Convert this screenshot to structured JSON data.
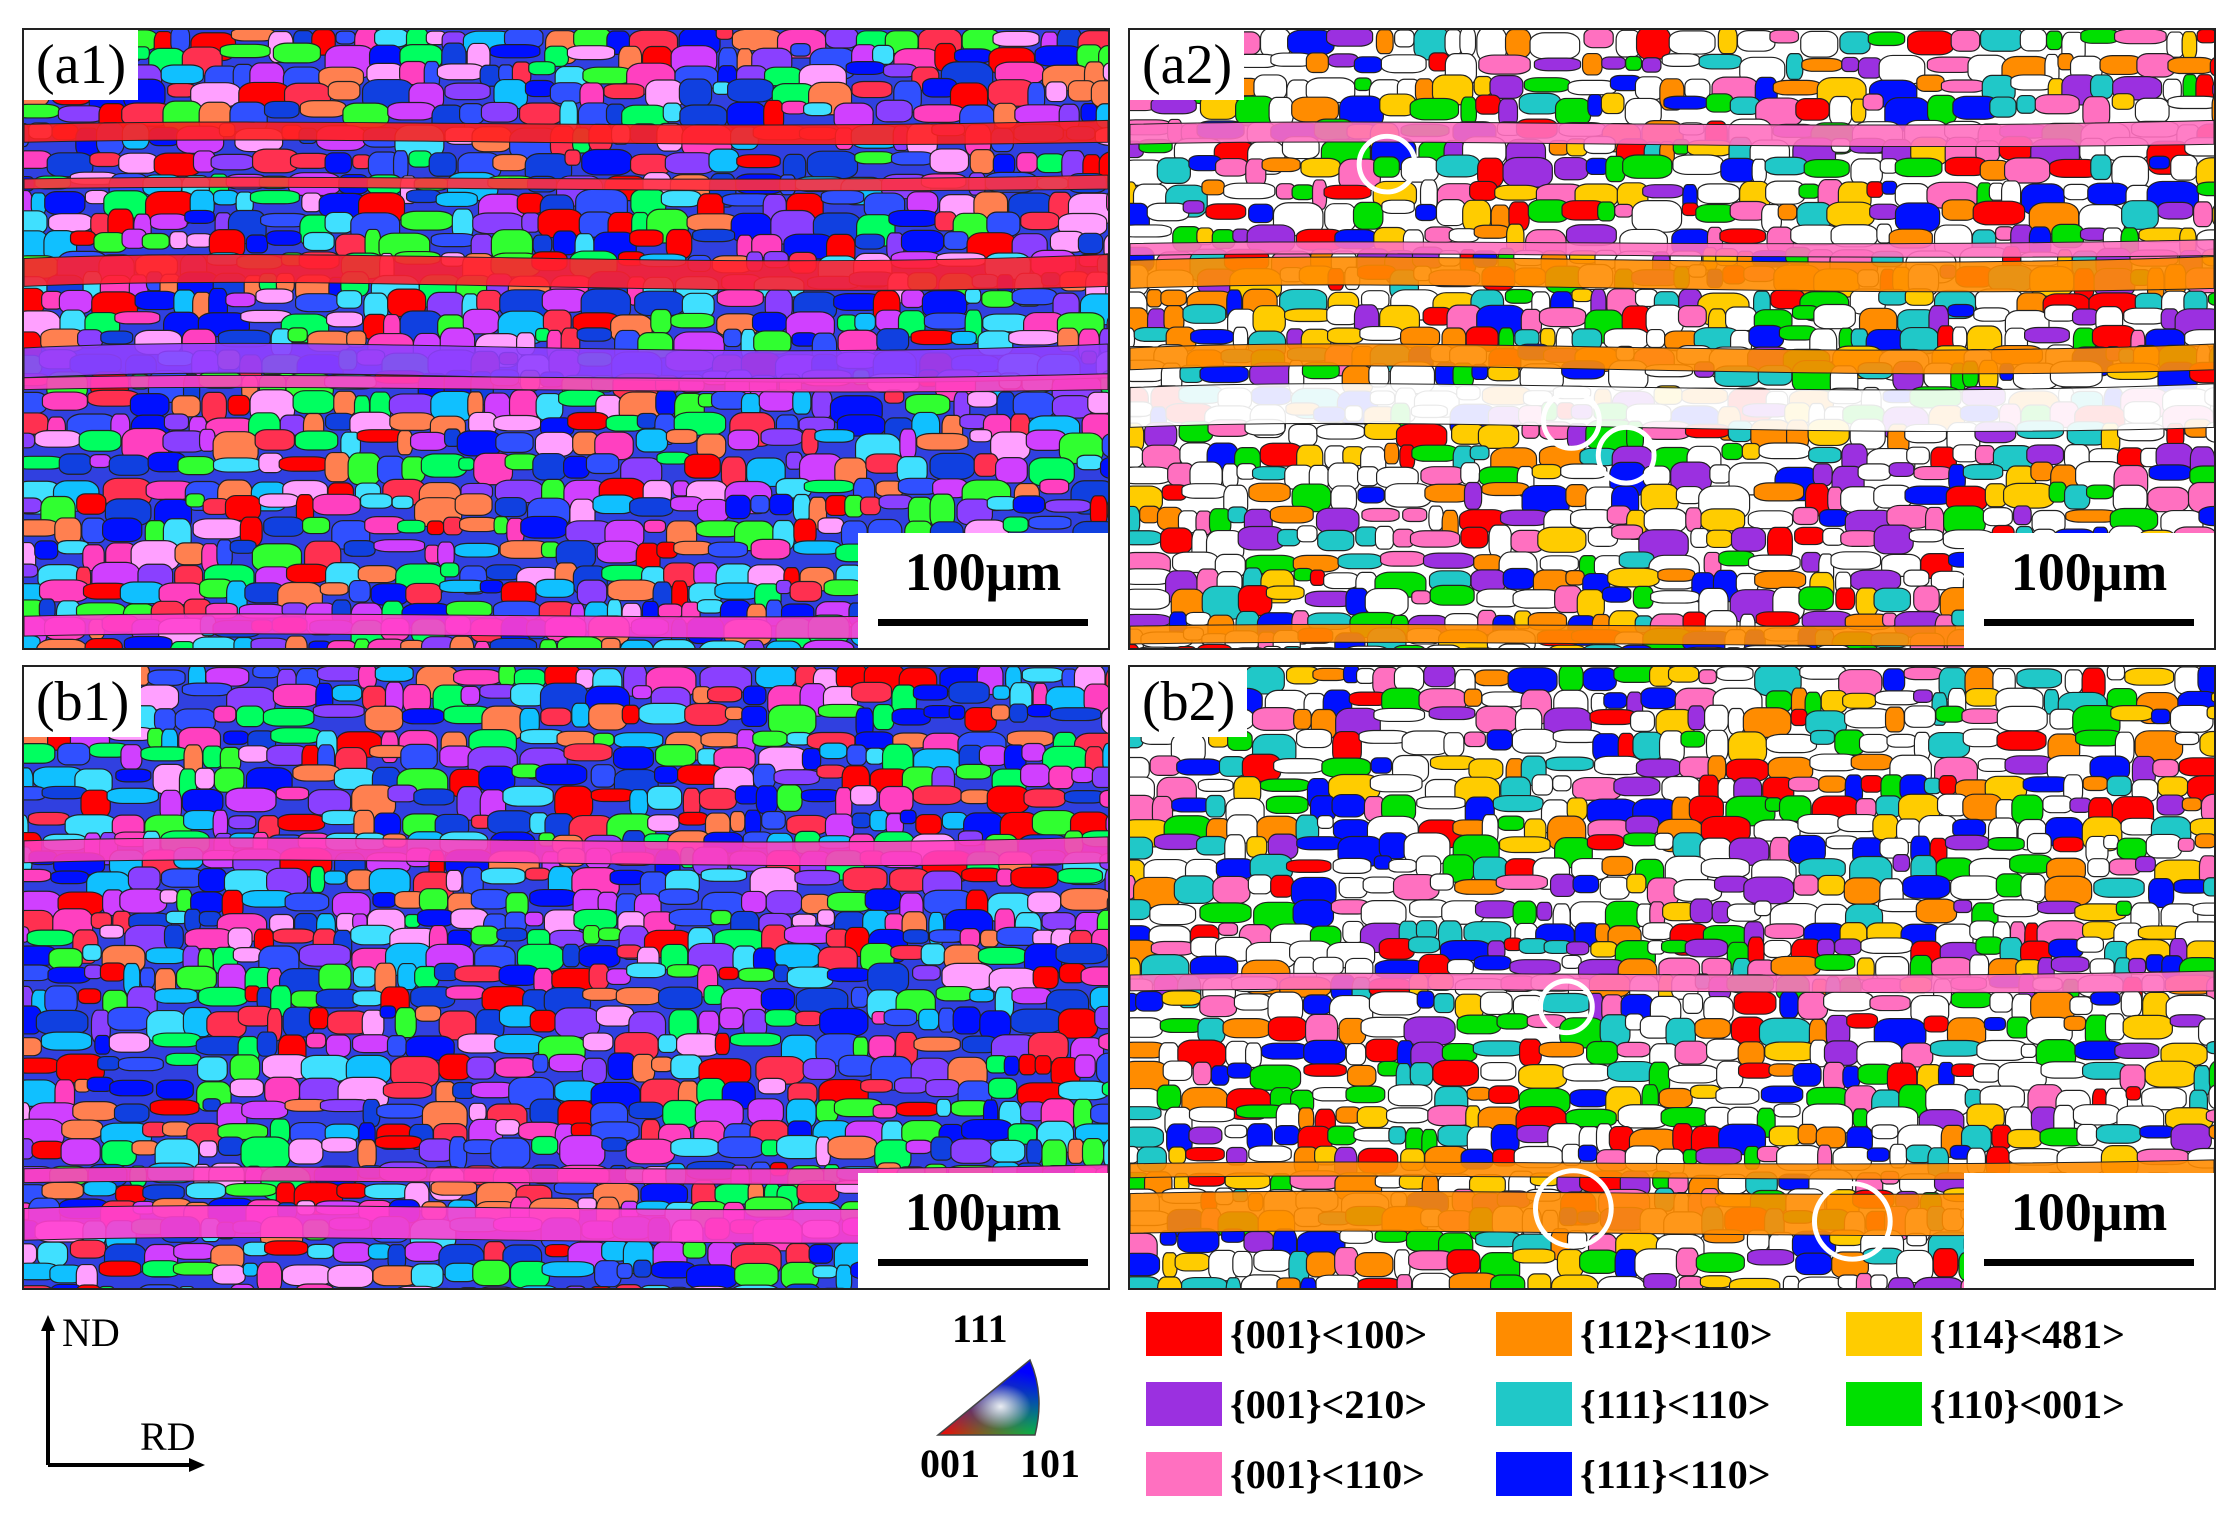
{
  "panels": [
    {
      "id": "a1",
      "label": "(a1)",
      "scale_text": "100μm"
    },
    {
      "id": "a2",
      "label": "(a2)",
      "scale_text": "100μm"
    },
    {
      "id": "b1",
      "label": "(b1)",
      "scale_text": "100μm"
    },
    {
      "id": "b2",
      "label": "(b2)",
      "scale_text": "100μm"
    }
  ],
  "axes": {
    "vertical": "ND",
    "horizontal": "RD"
  },
  "ipf_key": {
    "top": "111",
    "bottom_left": "001",
    "bottom_right": "101"
  },
  "legend": [
    {
      "text": "{001}<100>",
      "color": "#ff0000"
    },
    {
      "text": "{112}<110>",
      "color": "#ff8c00"
    },
    {
      "text": "{114}<481>",
      "color": "#ffcc00"
    },
    {
      "text": "{001}<210>",
      "color": "#9b30e0"
    },
    {
      "text": "{111}<110>",
      "color": "#20c8c8"
    },
    {
      "text": "{110}<001>",
      "color": "#00e000"
    },
    {
      "text": "{001}<110>",
      "color": "#ff70c0"
    },
    {
      "text": "{111}<110>",
      "color": "#0010ff"
    }
  ]
}
